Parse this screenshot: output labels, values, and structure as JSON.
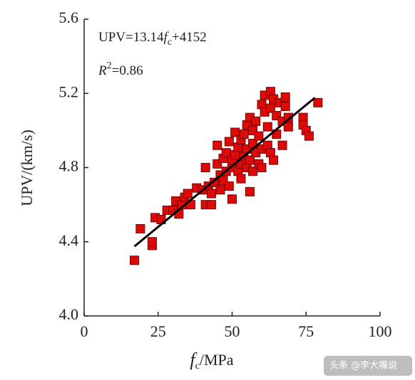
{
  "chart_data": {
    "type": "scatter",
    "annotations": [
      [
        "UPV=13.14",
        "f",
        "c",
        "+4152"
      ],
      [
        "R",
        "2",
        "=0.86"
      ]
    ],
    "xlabel": [
      "f",
      "c",
      "/MPa"
    ],
    "ylabel": "UPV/(km/s)",
    "watermark": "头条 @李大嘴说",
    "color": "#dd0a0a",
    "xlim": [
      0,
      100
    ],
    "xticks": [
      0,
      25,
      50,
      75,
      100
    ],
    "ylim": [
      4.0,
      5.6
    ],
    "yticks": [
      {
        "value": 4.0,
        "label": "4.0"
      },
      4.4,
      4.8,
      5.2,
      5.6
    ],
    "x": [
      17,
      19,
      23,
      23,
      24,
      26,
      28,
      30,
      31,
      32,
      33,
      34,
      35,
      36,
      38,
      40,
      41,
      41,
      42,
      43,
      43,
      44,
      45,
      45,
      46,
      46,
      47,
      47,
      48,
      48,
      49,
      49,
      50,
      50,
      50,
      51,
      51,
      52,
      52,
      53,
      53,
      53,
      54,
      54,
      55,
      55,
      55,
      56,
      56,
      56,
      57,
      57,
      57,
      58,
      58,
      59,
      59,
      60,
      60,
      60,
      61,
      61,
      62,
      62,
      63,
      63,
      63,
      64,
      64,
      65,
      65,
      66,
      67,
      67,
      68,
      68,
      69,
      69,
      74,
      74,
      75,
      76,
      79
    ],
    "values": [
      4.3,
      4.47,
      4.38,
      4.4,
      4.53,
      4.52,
      4.57,
      4.57,
      4.62,
      4.55,
      4.6,
      4.64,
      4.66,
      4.6,
      4.69,
      4.68,
      4.8,
      4.6,
      4.7,
      4.66,
      4.6,
      4.72,
      4.82,
      4.92,
      4.68,
      4.76,
      4.73,
      4.85,
      4.88,
      4.78,
      4.94,
      4.7,
      4.8,
      4.63,
      4.84,
      4.99,
      4.87,
      4.78,
      4.91,
      4.82,
      4.74,
      4.95,
      4.86,
      4.98,
      4.8,
      4.9,
      5.03,
      5.07,
      4.67,
      4.84,
      5.0,
      4.93,
      4.78,
      5.05,
      4.88,
      4.97,
      4.82,
      5.14,
      4.9,
      4.8,
      5.1,
      5.19,
      5.02,
      4.92,
      5.21,
      5.12,
      4.88,
      5.17,
      4.84,
      5.08,
      4.98,
      5.15,
      4.92,
      5.05,
      5.18,
      5.13,
      5.02,
      5.07,
      5.07,
      5.03,
      5.0,
      4.97,
      5.15
    ],
    "fit_line": {
      "x": [
        17,
        78
      ],
      "y": [
        4.375,
        5.177
      ]
    }
  }
}
